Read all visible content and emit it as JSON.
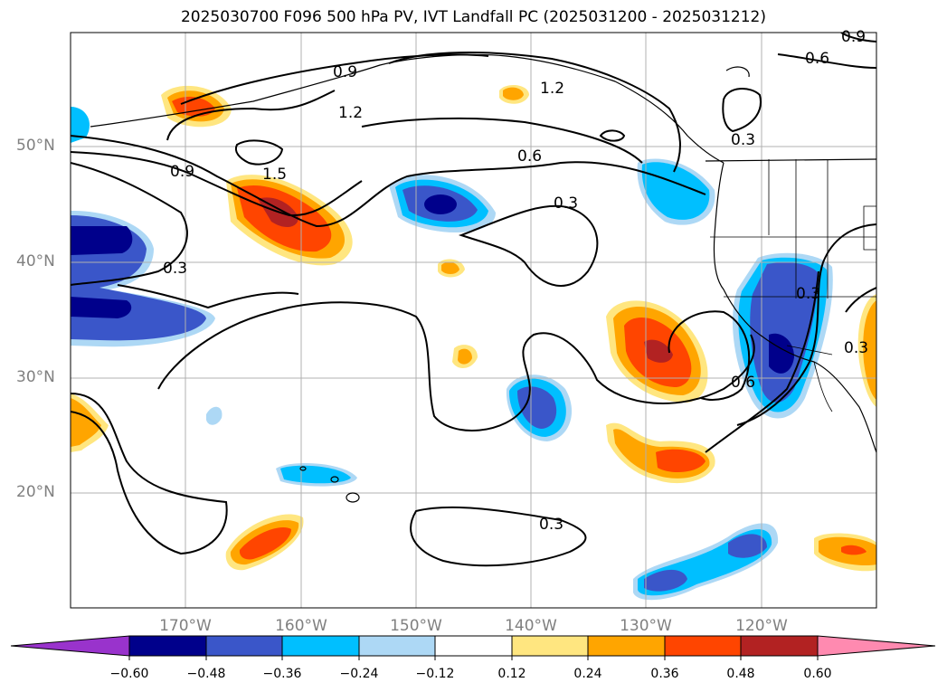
{
  "title": "2025030700 F096 500 hPa PV, IVT Landfall PC (2025031200 - 2025031212)",
  "lat_labels": [
    "50°N",
    "40°N",
    "30°N",
    "20°N"
  ],
  "lon_labels": [
    "170°W",
    "160°W",
    "150°W",
    "140°W",
    "130°W",
    "120°W"
  ],
  "contour_labels": [
    "0.9",
    "0.6",
    "1.2",
    "1.2",
    "0.6",
    "0.9",
    "1.5",
    "0.3",
    "0.3",
    "0.3",
    "0.3",
    "0.6",
    "0.3",
    "0.3",
    "0.9"
  ],
  "colorbar": {
    "ticks": [
      "−0.60",
      "−0.48",
      "−0.36",
      "−0.24",
      "−0.12",
      "0.12",
      "0.24",
      "0.36",
      "0.48",
      "0.60"
    ],
    "colors": [
      "#9933cc",
      "#00008b",
      "#3a56c9",
      "#00bfff",
      "#add8f5",
      "#ffffff",
      "#ffe680",
      "#ffa500",
      "#ff4500",
      "#b22222",
      "#ff8ab0"
    ]
  }
}
